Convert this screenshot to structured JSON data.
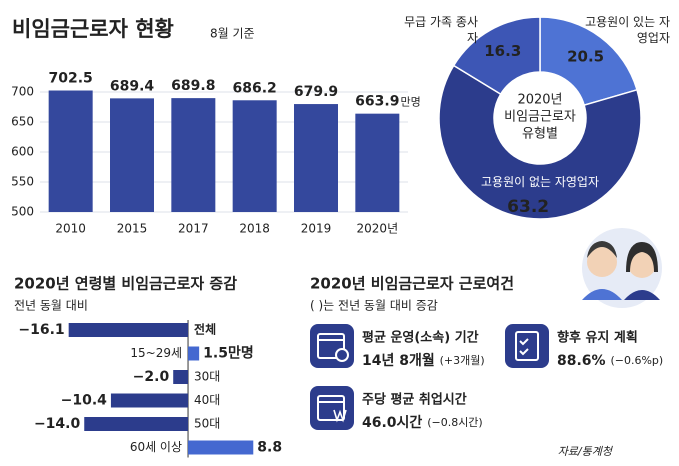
{
  "header": {
    "title": "비임금근로자 현황",
    "subtitle": "8월 기준"
  },
  "chart_data": [
    {
      "type": "bar",
      "categories": [
        "2010",
        "2015",
        "2017",
        "2018",
        "2019",
        "2020년"
      ],
      "values": [
        702.5,
        689.4,
        689.8,
        686.2,
        679.9,
        663.9
      ],
      "unit": "만명",
      "color": "#34489d",
      "ylim": [
        500,
        750
      ],
      "yticks": [
        500,
        550,
        600,
        650,
        700
      ],
      "grid": true
    },
    {
      "type": "pie",
      "title": [
        "2020년",
        "비임금근로자",
        "유형별"
      ],
      "categories": [
        "고용원이 있는 자영업자",
        "고용원이 없는 자영업자",
        "무급 가족 종사자"
      ],
      "values": [
        20.5,
        63.2,
        16.3
      ],
      "colors": [
        "#4e73d4",
        "#2c3c8c",
        "#3d56b5"
      ]
    },
    {
      "type": "hbar",
      "title": "2020년 연령별 비임금근로자 증감",
      "subtitle": "전년 동월 대비",
      "categories": [
        "전체",
        "15~29세",
        "30대",
        "40대",
        "50대",
        "60세 이상"
      ],
      "values": [
        -16.1,
        1.5,
        -2.0,
        -10.4,
        -14.0,
        8.8
      ],
      "value_labels": [
        "−16.1",
        "1.5만명",
        "−2.0",
        "−10.4",
        "−14.0",
        "8.8"
      ],
      "colors": {
        "negative": "#2c3c8c",
        "positive": "#4468d0"
      },
      "xlim": [
        -17,
        12
      ]
    }
  ],
  "conditions": {
    "title": "2020년 비임금근로자 근로여건",
    "note": "( )는 전년 동월 대비 증감",
    "items": [
      {
        "label": "평균 운영(소속) 기간",
        "value": "14년 8개월",
        "change": "(+3개월)"
      },
      {
        "label": "향후 유지 계획",
        "value": "88.6%",
        "change": "(−0.6%p)"
      },
      {
        "label": "주당 평균 취업시간",
        "value": "46.0시간",
        "change": "(−0.8시간)"
      }
    ]
  },
  "source": "자료/통계청"
}
